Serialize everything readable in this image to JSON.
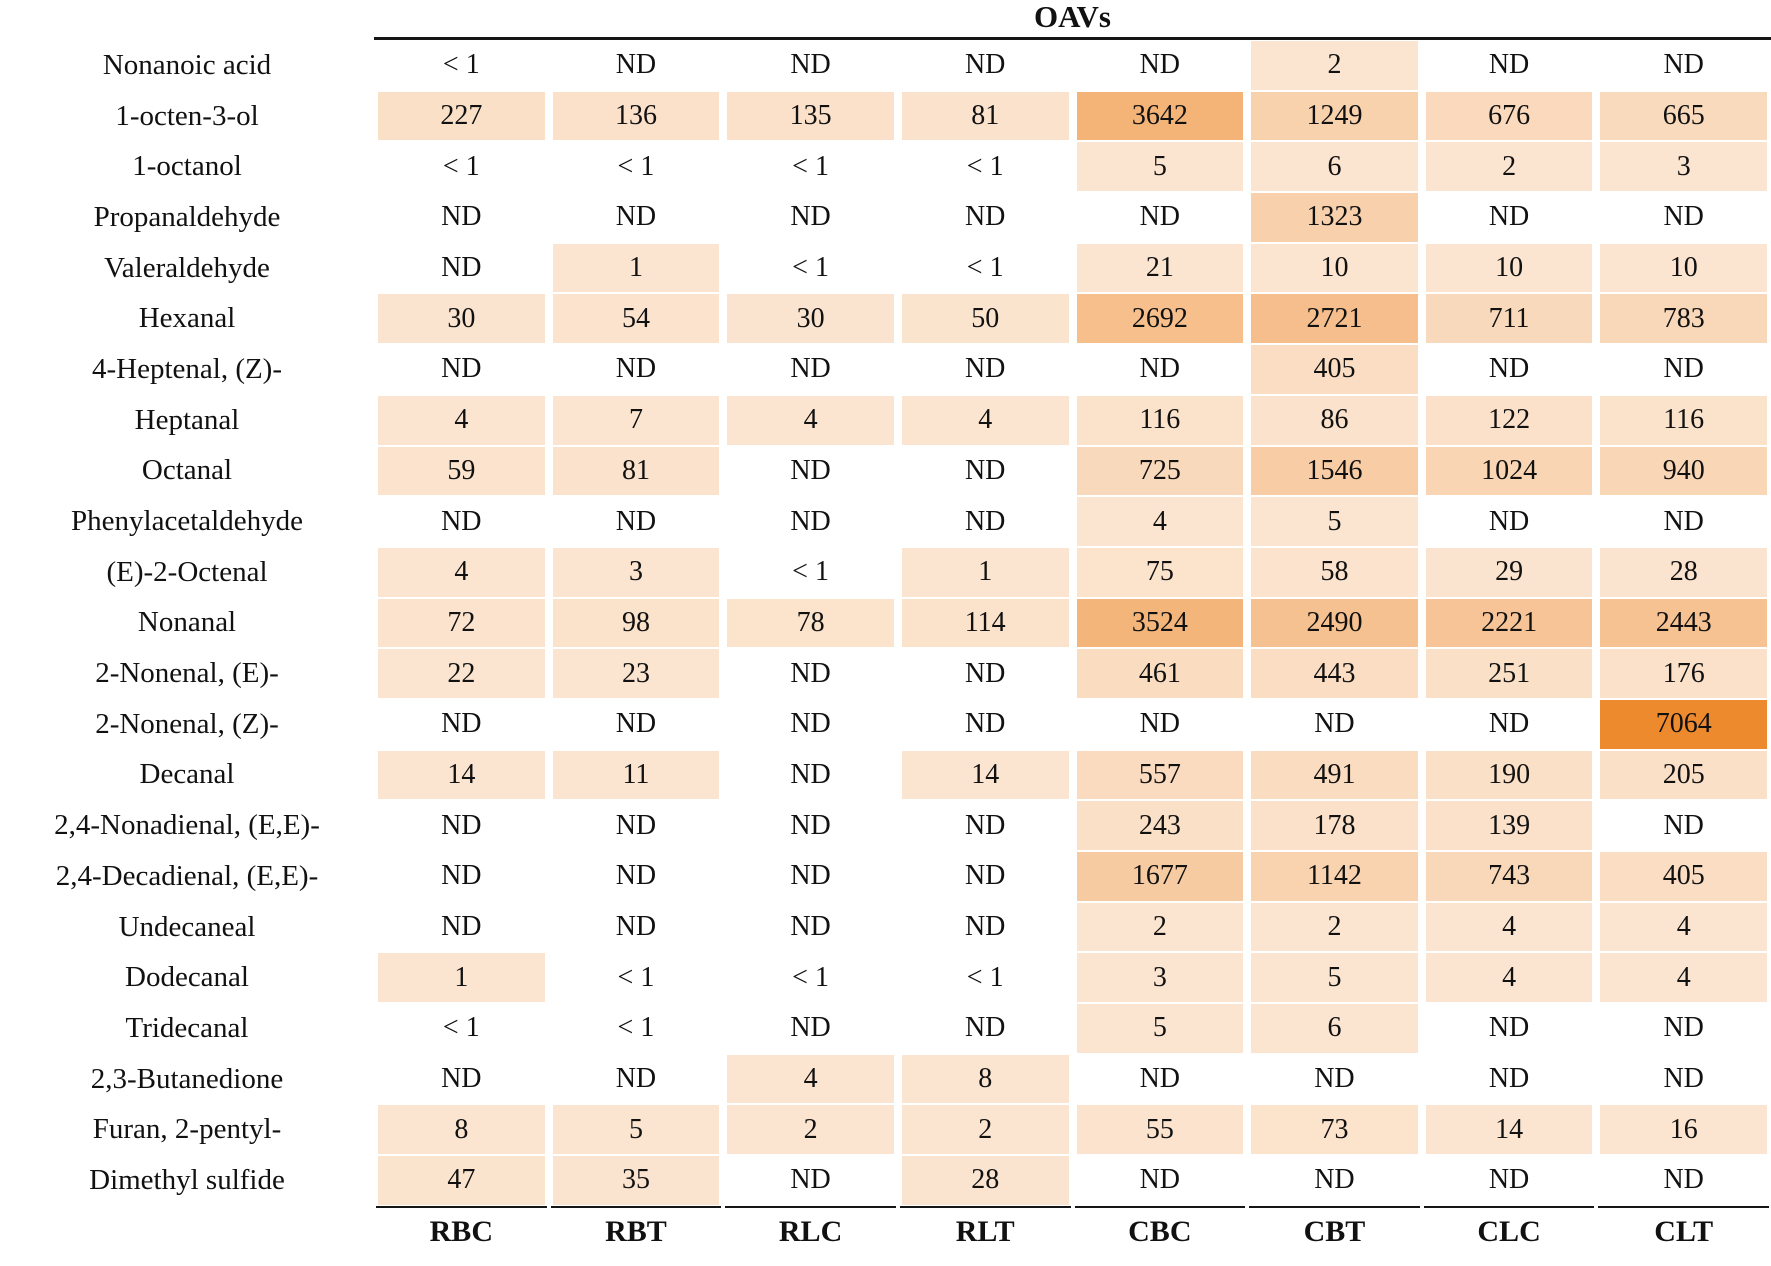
{
  "chart_data": {
    "type": "heatmap",
    "title": "OAVs",
    "columns": [
      "RBC",
      "RBT",
      "RLC",
      "RLT",
      "CBC",
      "CBT",
      "CLC",
      "CLT"
    ],
    "rows": [
      "Nonanoic acid",
      "1-octen-3-ol",
      "1-octanol",
      "Propanaldehyde",
      "Valeraldehyde",
      "Hexanal",
      "4-Heptenal, (Z)-",
      "Heptanal",
      "Octanal",
      "Phenylacetaldehyde",
      "(E)-2-Octenal",
      "Nonanal",
      "2-Nonenal, (E)-",
      "2-Nonenal, (Z)-",
      "Decanal",
      "2,4-Nonadienal, (E,E)-",
      "2,4-Decadienal, (E,E)-",
      "Undecaneal",
      "Dodecanal",
      "Tridecanal",
      "2,3-Butanedione",
      "Furan, 2-pentyl-",
      "Dimethyl sulfide"
    ],
    "values": [
      [
        "< 1",
        "ND",
        "ND",
        "ND",
        "ND",
        "2",
        "ND",
        "ND"
      ],
      [
        "227",
        "136",
        "135",
        "81",
        "3642",
        "1249",
        "676",
        "665"
      ],
      [
        "< 1",
        "< 1",
        "< 1",
        "< 1",
        "5",
        "6",
        "2",
        "3"
      ],
      [
        "ND",
        "ND",
        "ND",
        "ND",
        "ND",
        "1323",
        "ND",
        "ND"
      ],
      [
        "ND",
        "1",
        "< 1",
        "< 1",
        "21",
        "10",
        "10",
        "10"
      ],
      [
        "30",
        "54",
        "30",
        "50",
        "2692",
        "2721",
        "711",
        "783"
      ],
      [
        "ND",
        "ND",
        "ND",
        "ND",
        "ND",
        "405",
        "ND",
        "ND"
      ],
      [
        "4",
        "7",
        "4",
        "4",
        "116",
        "86",
        "122",
        "116"
      ],
      [
        "59",
        "81",
        "ND",
        "ND",
        "725",
        "1546",
        "1024",
        "940"
      ],
      [
        "ND",
        "ND",
        "ND",
        "ND",
        "4",
        "5",
        "ND",
        "ND"
      ],
      [
        "4",
        "3",
        "< 1",
        "1",
        "75",
        "58",
        "29",
        "28"
      ],
      [
        "72",
        "98",
        "78",
        "114",
        "3524",
        "2490",
        "2221",
        "2443"
      ],
      [
        "22",
        "23",
        "ND",
        "ND",
        "461",
        "443",
        "251",
        "176"
      ],
      [
        "ND",
        "ND",
        "ND",
        "ND",
        "ND",
        "ND",
        "ND",
        "7064"
      ],
      [
        "14",
        "11",
        "ND",
        "14",
        "557",
        "491",
        "190",
        "205"
      ],
      [
        "ND",
        "ND",
        "ND",
        "ND",
        "243",
        "178",
        "139",
        "ND"
      ],
      [
        "ND",
        "ND",
        "ND",
        "ND",
        "1677",
        "1142",
        "743",
        "405"
      ],
      [
        "ND",
        "ND",
        "ND",
        "ND",
        "2",
        "2",
        "4",
        "4"
      ],
      [
        "1",
        "< 1",
        "< 1",
        "< 1",
        "3",
        "5",
        "4",
        "4"
      ],
      [
        "< 1",
        "< 1",
        "ND",
        "ND",
        "5",
        "6",
        "ND",
        "ND"
      ],
      [
        "ND",
        "ND",
        "4",
        "8",
        "ND",
        "ND",
        "ND",
        "ND"
      ],
      [
        "8",
        "5",
        "2",
        "2",
        "55",
        "73",
        "14",
        "16"
      ],
      [
        "47",
        "35",
        "ND",
        "28",
        "ND",
        "ND",
        "ND",
        "ND"
      ]
    ],
    "na_label": "ND",
    "value_range": [
      0,
      7064
    ],
    "colors": {
      "cell_min": "#FFFFFF",
      "cell_low": "#FBE5D1",
      "cell_max": "#EE8A2E",
      "rule": "#151515",
      "text": "#111111"
    },
    "layout": {
      "legend": "none",
      "grid": "off",
      "column_headers_position": "bottom",
      "row_labels_position": "left"
    }
  }
}
